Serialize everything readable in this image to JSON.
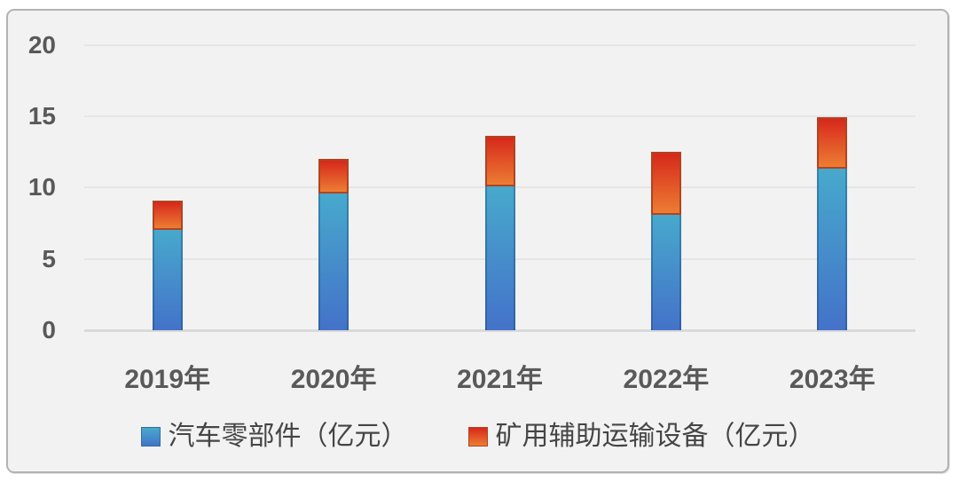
{
  "chart_data": {
    "type": "bar",
    "stacked": true,
    "title": "",
    "xlabel": "",
    "ylabel": "",
    "categories": [
      "2019年",
      "2020年",
      "2021年",
      "2022年",
      "2023年"
    ],
    "series": [
      {
        "id": "auto-parts",
        "name": "汽车零部件（亿元）",
        "values": [
          7.0,
          9.6,
          10.1,
          8.1,
          11.3
        ],
        "gradient_top": "#47a9cc",
        "gradient_bottom": "#4472c9",
        "edge_color": "#2f6e9e"
      },
      {
        "id": "mining-equipment",
        "name": "矿用辅助运输设备（亿元）",
        "values": [
          2.1,
          2.4,
          3.5,
          4.4,
          3.6
        ],
        "gradient_top": "#d7281b",
        "gradient_bottom": "#ec7d33",
        "edge_color": "#b04420"
      }
    ],
    "y_ticks": [
      0,
      5,
      10,
      15,
      20
    ],
    "ylim": [
      0,
      20
    ],
    "grid": true,
    "legend_position": "bottom",
    "plot_bg_color": "#f2f2f2",
    "gridline_color": "#e5e5e5",
    "axis_label_color": "#595959"
  }
}
